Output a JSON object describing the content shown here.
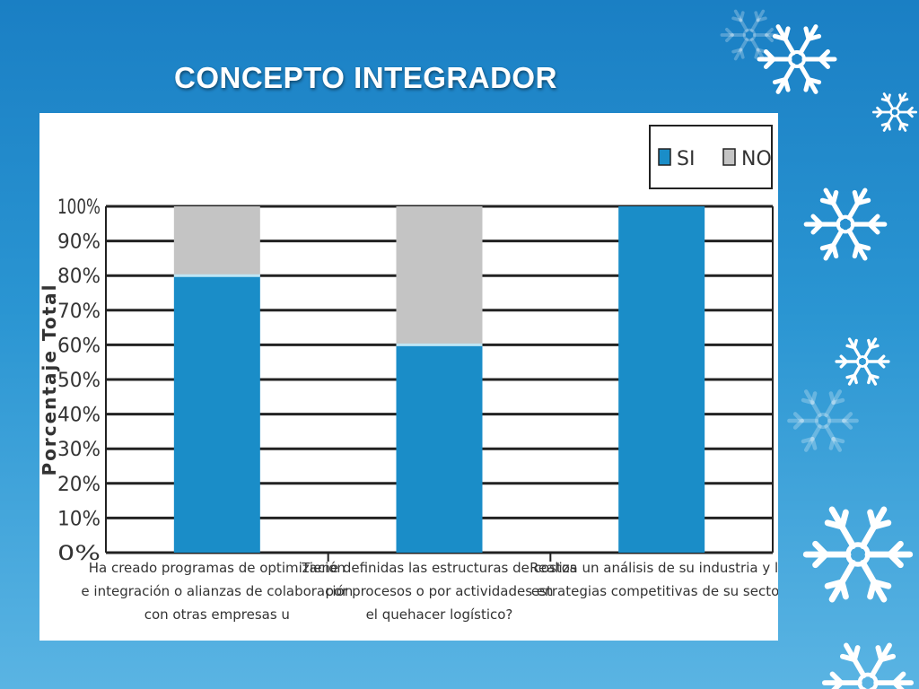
{
  "slide": {
    "title": "CONCEPTO INTEGRADOR"
  },
  "colors": {
    "si": "#1a8dc8",
    "no": "#c4c4c4",
    "background": "#2a95d2"
  },
  "decor": {
    "icon": "snowflake-icon"
  },
  "chart_data": {
    "type": "bar",
    "stacked": true,
    "ylabel": "Porcentaje Total",
    "ylim": [
      0,
      100
    ],
    "yticks": [
      "0%",
      "10%",
      "20%",
      "30%",
      "40%",
      "50%",
      "60%",
      "70%",
      "80%",
      "90%",
      "100%"
    ],
    "categories": [
      [
        "Ha creado programas de optimización",
        "e integración o alianzas de colaboración",
        "con otras empresas u"
      ],
      [
        "Tiene definidas las estructuras de costos",
        "por procesos o por actividades en",
        "el quehacer logístico?"
      ],
      [
        "Realiza un análisis de su industria y las",
        "estrategias competitivas de su sector?"
      ]
    ],
    "series": [
      {
        "name": "SI",
        "values": [
          80,
          60,
          100
        ]
      },
      {
        "name": "NO",
        "values": [
          20,
          40,
          0
        ]
      }
    ],
    "legend": "top-right",
    "grid": true
  }
}
